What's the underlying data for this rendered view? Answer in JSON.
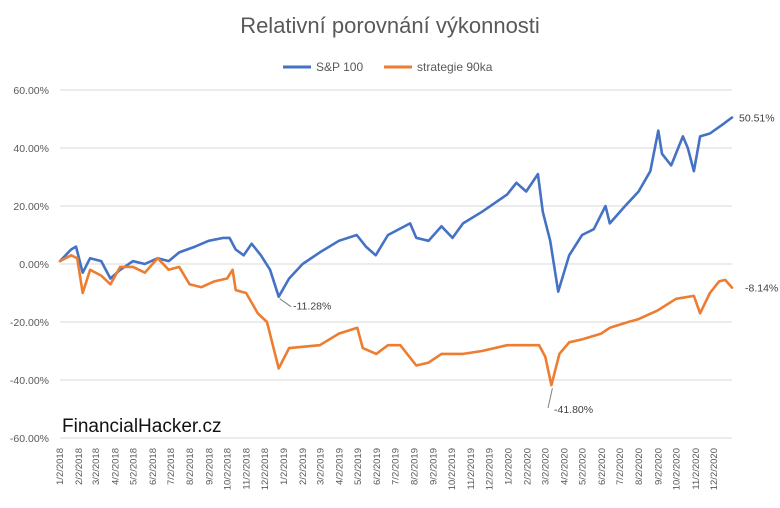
{
  "chart_data": {
    "type": "line",
    "title": "Relativní porovnání výkonnosti",
    "ylim": [
      -60,
      60
    ],
    "y_ticks": [
      "60.00%",
      "40.00%",
      "20.00%",
      "0.00%",
      "-20.00%",
      "-40.00%",
      "-60.00%"
    ],
    "y_tick_values": [
      60,
      40,
      20,
      0,
      -20,
      -40,
      -60
    ],
    "grid": "horizontal",
    "legend": "top",
    "x_ticks": [
      "1/2/2018",
      "2/2/2018",
      "3/2/2018",
      "4/2/2018",
      "5/2/2018",
      "6/2/2018",
      "7/2/2018",
      "8/2/2018",
      "9/2/2018",
      "10/2/2018",
      "11/2/2018",
      "12/2/2018",
      "1/2/2019",
      "2/2/2019",
      "3/2/2019",
      "4/2/2019",
      "5/2/2019",
      "6/2/2019",
      "7/2/2019",
      "8/2/2019",
      "9/2/2019",
      "10/2/2019",
      "11/2/2019",
      "12/2/2019",
      "1/2/2020",
      "2/2/2020",
      "3/2/2020",
      "4/2/2020",
      "5/2/2020",
      "6/2/2020",
      "7/2/2020",
      "8/2/2020",
      "9/2/2020",
      "10/2/2020",
      "11/2/2020",
      "12/2/2020"
    ],
    "x_range": [
      "2018-01-02",
      "2020-12-31"
    ],
    "series": [
      {
        "name": "S&P 100",
        "color": "#4472c4",
        "points": [
          [
            "2018-01-02",
            1
          ],
          [
            "2018-01-20",
            5
          ],
          [
            "2018-01-28",
            6
          ],
          [
            "2018-02-08",
            -3
          ],
          [
            "2018-02-20",
            2
          ],
          [
            "2018-03-10",
            1
          ],
          [
            "2018-03-25",
            -5
          ],
          [
            "2018-04-10",
            -2
          ],
          [
            "2018-05-01",
            1
          ],
          [
            "2018-05-20",
            0
          ],
          [
            "2018-06-10",
            2
          ],
          [
            "2018-06-28",
            1
          ],
          [
            "2018-07-15",
            4
          ],
          [
            "2018-08-10",
            6
          ],
          [
            "2018-09-01",
            8
          ],
          [
            "2018-09-25",
            9
          ],
          [
            "2018-10-05",
            9
          ],
          [
            "2018-10-15",
            5
          ],
          [
            "2018-10-28",
            3
          ],
          [
            "2018-11-10",
            7
          ],
          [
            "2018-11-25",
            3
          ],
          [
            "2018-12-10",
            -2
          ],
          [
            "2018-12-24",
            -11.28
          ],
          [
            "2019-01-10",
            -5
          ],
          [
            "2019-02-01",
            0
          ],
          [
            "2019-03-01",
            4
          ],
          [
            "2019-04-01",
            8
          ],
          [
            "2019-04-30",
            10
          ],
          [
            "2019-05-15",
            6
          ],
          [
            "2019-05-31",
            3
          ],
          [
            "2019-06-20",
            10
          ],
          [
            "2019-07-26",
            14
          ],
          [
            "2019-08-05",
            9
          ],
          [
            "2019-08-25",
            8
          ],
          [
            "2019-09-15",
            13
          ],
          [
            "2019-10-03",
            9
          ],
          [
            "2019-10-20",
            14
          ],
          [
            "2019-11-20",
            18
          ],
          [
            "2019-12-31",
            24
          ],
          [
            "2020-01-15",
            28
          ],
          [
            "2020-01-31",
            25
          ],
          [
            "2020-02-19",
            31
          ],
          [
            "2020-02-27",
            18
          ],
          [
            "2020-03-10",
            8
          ],
          [
            "2020-03-23",
            -9.5
          ],
          [
            "2020-04-10",
            3
          ],
          [
            "2020-05-01",
            10
          ],
          [
            "2020-05-20",
            12
          ],
          [
            "2020-06-08",
            20
          ],
          [
            "2020-06-15",
            14
          ],
          [
            "2020-07-10",
            20
          ],
          [
            "2020-08-01",
            25
          ],
          [
            "2020-08-20",
            32
          ],
          [
            "2020-09-02",
            46
          ],
          [
            "2020-09-08",
            38
          ],
          [
            "2020-09-23",
            34
          ],
          [
            "2020-10-12",
            44
          ],
          [
            "2020-10-20",
            40
          ],
          [
            "2020-10-30",
            32
          ],
          [
            "2020-11-09",
            44
          ],
          [
            "2020-11-25",
            45
          ],
          [
            "2020-12-15",
            48
          ],
          [
            "2020-12-31",
            50.51
          ]
        ]
      },
      {
        "name": "strategie 90ka",
        "color": "#ed7d31",
        "points": [
          [
            "2018-01-02",
            1
          ],
          [
            "2018-01-20",
            3
          ],
          [
            "2018-01-30",
            2
          ],
          [
            "2018-02-08",
            -10
          ],
          [
            "2018-02-20",
            -2
          ],
          [
            "2018-03-10",
            -4
          ],
          [
            "2018-03-25",
            -7
          ],
          [
            "2018-04-10",
            -1
          ],
          [
            "2018-05-01",
            -1
          ],
          [
            "2018-05-20",
            -3
          ],
          [
            "2018-06-10",
            2
          ],
          [
            "2018-06-28",
            -2
          ],
          [
            "2018-07-15",
            -1
          ],
          [
            "2018-08-01",
            -7
          ],
          [
            "2018-08-20",
            -8
          ],
          [
            "2018-09-10",
            -6
          ],
          [
            "2018-10-01",
            -5
          ],
          [
            "2018-10-10",
            -2
          ],
          [
            "2018-10-15",
            -9
          ],
          [
            "2018-11-01",
            -10
          ],
          [
            "2018-11-20",
            -17
          ],
          [
            "2018-12-05",
            -20
          ],
          [
            "2018-12-24",
            -36
          ],
          [
            "2019-01-10",
            -29
          ],
          [
            "2019-03-01",
            -28
          ],
          [
            "2019-04-01",
            -24
          ],
          [
            "2019-05-01",
            -22
          ],
          [
            "2019-05-10",
            -29
          ],
          [
            "2019-06-01",
            -31
          ],
          [
            "2019-06-20",
            -28
          ],
          [
            "2019-07-10",
            -28
          ],
          [
            "2019-08-05",
            -35
          ],
          [
            "2019-08-25",
            -34
          ],
          [
            "2019-09-15",
            -31
          ],
          [
            "2019-10-20",
            -31
          ],
          [
            "2019-11-20",
            -30
          ],
          [
            "2019-12-31",
            -28
          ],
          [
            "2020-01-31",
            -28
          ],
          [
            "2020-02-21",
            -28
          ],
          [
            "2020-03-02",
            -32
          ],
          [
            "2020-03-12",
            -41.8
          ],
          [
            "2020-03-25",
            -31
          ],
          [
            "2020-04-10",
            -27
          ],
          [
            "2020-05-01",
            -26
          ],
          [
            "2020-06-01",
            -24
          ],
          [
            "2020-06-15",
            -22
          ],
          [
            "2020-07-15",
            -20
          ],
          [
            "2020-08-01",
            -19
          ],
          [
            "2020-09-01",
            -16
          ],
          [
            "2020-10-01",
            -12
          ],
          [
            "2020-10-30",
            -11
          ],
          [
            "2020-11-09",
            -17
          ],
          [
            "2020-11-25",
            -10
          ],
          [
            "2020-12-10",
            -6
          ],
          [
            "2020-12-20",
            -5.5
          ],
          [
            "2020-12-31",
            -8.14
          ]
        ]
      }
    ],
    "annotations": [
      {
        "text": "50.51%",
        "date": "2020-12-31",
        "value": 50.51,
        "series": 0
      },
      {
        "text": "-8.14%",
        "date": "2020-12-31",
        "value": -8.14,
        "series": 1
      },
      {
        "text": "-11.28%",
        "date": "2018-12-24",
        "value": -11.28,
        "series": 0
      },
      {
        "text": "-41.80%",
        "date": "2020-03-12",
        "value": -41.8,
        "series": 1
      }
    ]
  },
  "watermark": "FinancialHacker.cz"
}
